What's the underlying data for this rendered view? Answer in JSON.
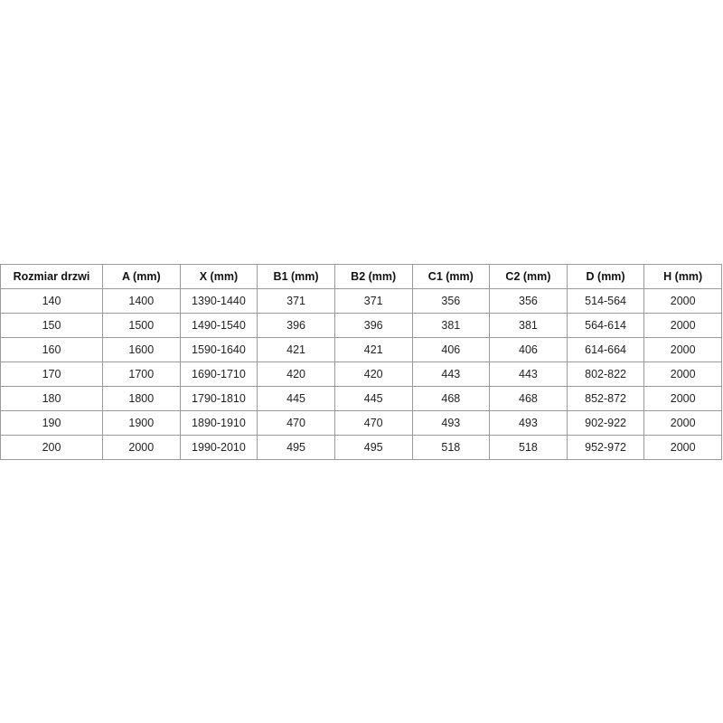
{
  "table": {
    "headers": [
      "Rozmiar drzwi",
      "A (mm)",
      "X (mm)",
      "B1 (mm)",
      "B2 (mm)",
      "C1 (mm)",
      "C2 (mm)",
      "D (mm)",
      "H (mm)"
    ],
    "rows": [
      [
        "140",
        "1400",
        "1390-1440",
        "371",
        "371",
        "356",
        "356",
        "514-564",
        "2000"
      ],
      [
        "150",
        "1500",
        "1490-1540",
        "396",
        "396",
        "381",
        "381",
        "564-614",
        "2000"
      ],
      [
        "160",
        "1600",
        "1590-1640",
        "421",
        "421",
        "406",
        "406",
        "614-664",
        "2000"
      ],
      [
        "170",
        "1700",
        "1690-1710",
        "420",
        "420",
        "443",
        "443",
        "802-822",
        "2000"
      ],
      [
        "180",
        "1800",
        "1790-1810",
        "445",
        "445",
        "468",
        "468",
        "852-872",
        "2000"
      ],
      [
        "190",
        "1900",
        "1890-1910",
        "470",
        "470",
        "493",
        "493",
        "902-922",
        "2000"
      ],
      [
        "200",
        "2000",
        "1990-2010",
        "495",
        "495",
        "518",
        "518",
        "952-972",
        "2000"
      ]
    ]
  }
}
